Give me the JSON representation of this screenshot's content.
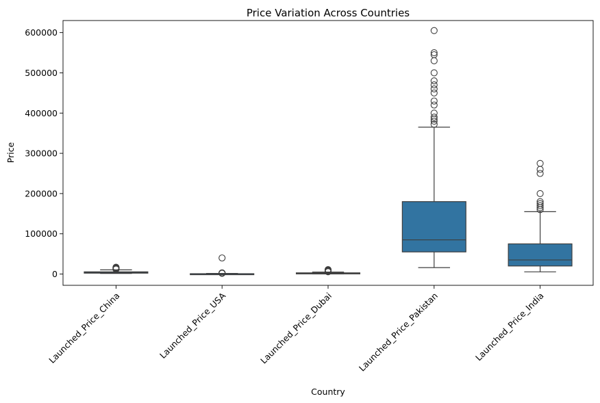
{
  "chart_data": {
    "type": "boxplot",
    "title": "Price Variation Across Countries",
    "xlabel": "Country",
    "ylabel": "Price",
    "ylim": [
      -28000,
      630000
    ],
    "yticks": [
      0,
      100000,
      200000,
      300000,
      400000,
      500000,
      600000
    ],
    "grid": false,
    "box_color": "#3274a1",
    "edge_color": "#3d3d3d",
    "categories": [
      "Launched_Price_China",
      "Launched_Price_USA",
      "Launched_Price_Dubai",
      "Launched_Price_Pakistan",
      "Launched_Price_India"
    ],
    "boxes": [
      {
        "min": 1500,
        "q1": 2200,
        "median": 4000,
        "q3": 5500,
        "max": 10500,
        "outliers": [
          12000,
          13000,
          14000,
          15000,
          16000,
          17000
        ]
      },
      {
        "min": 100,
        "q1": 300,
        "median": 600,
        "q3": 900,
        "max": 1600,
        "outliers": [
          1800,
          2000,
          2300,
          2600,
          3000,
          40000
        ]
      },
      {
        "min": 500,
        "q1": 1000,
        "median": 2000,
        "q3": 3000,
        "max": 5000,
        "outliers": [
          5600,
          6200,
          7000,
          8000,
          9000,
          10000,
          11000
        ]
      },
      {
        "min": 16000,
        "q1": 55000,
        "median": 85000,
        "q3": 180000,
        "max": 365000,
        "outliers": [
          372000,
          380000,
          385000,
          390000,
          400000,
          420000,
          430000,
          450000,
          460000,
          470000,
          480000,
          500000,
          530000,
          545000,
          550000,
          605000
        ]
      },
      {
        "min": 5500,
        "q1": 20000,
        "median": 35000,
        "q3": 75000,
        "max": 155000,
        "outliers": [
          160000,
          165000,
          170000,
          175000,
          180000,
          200000,
          250000,
          260000,
          275000
        ]
      }
    ]
  }
}
